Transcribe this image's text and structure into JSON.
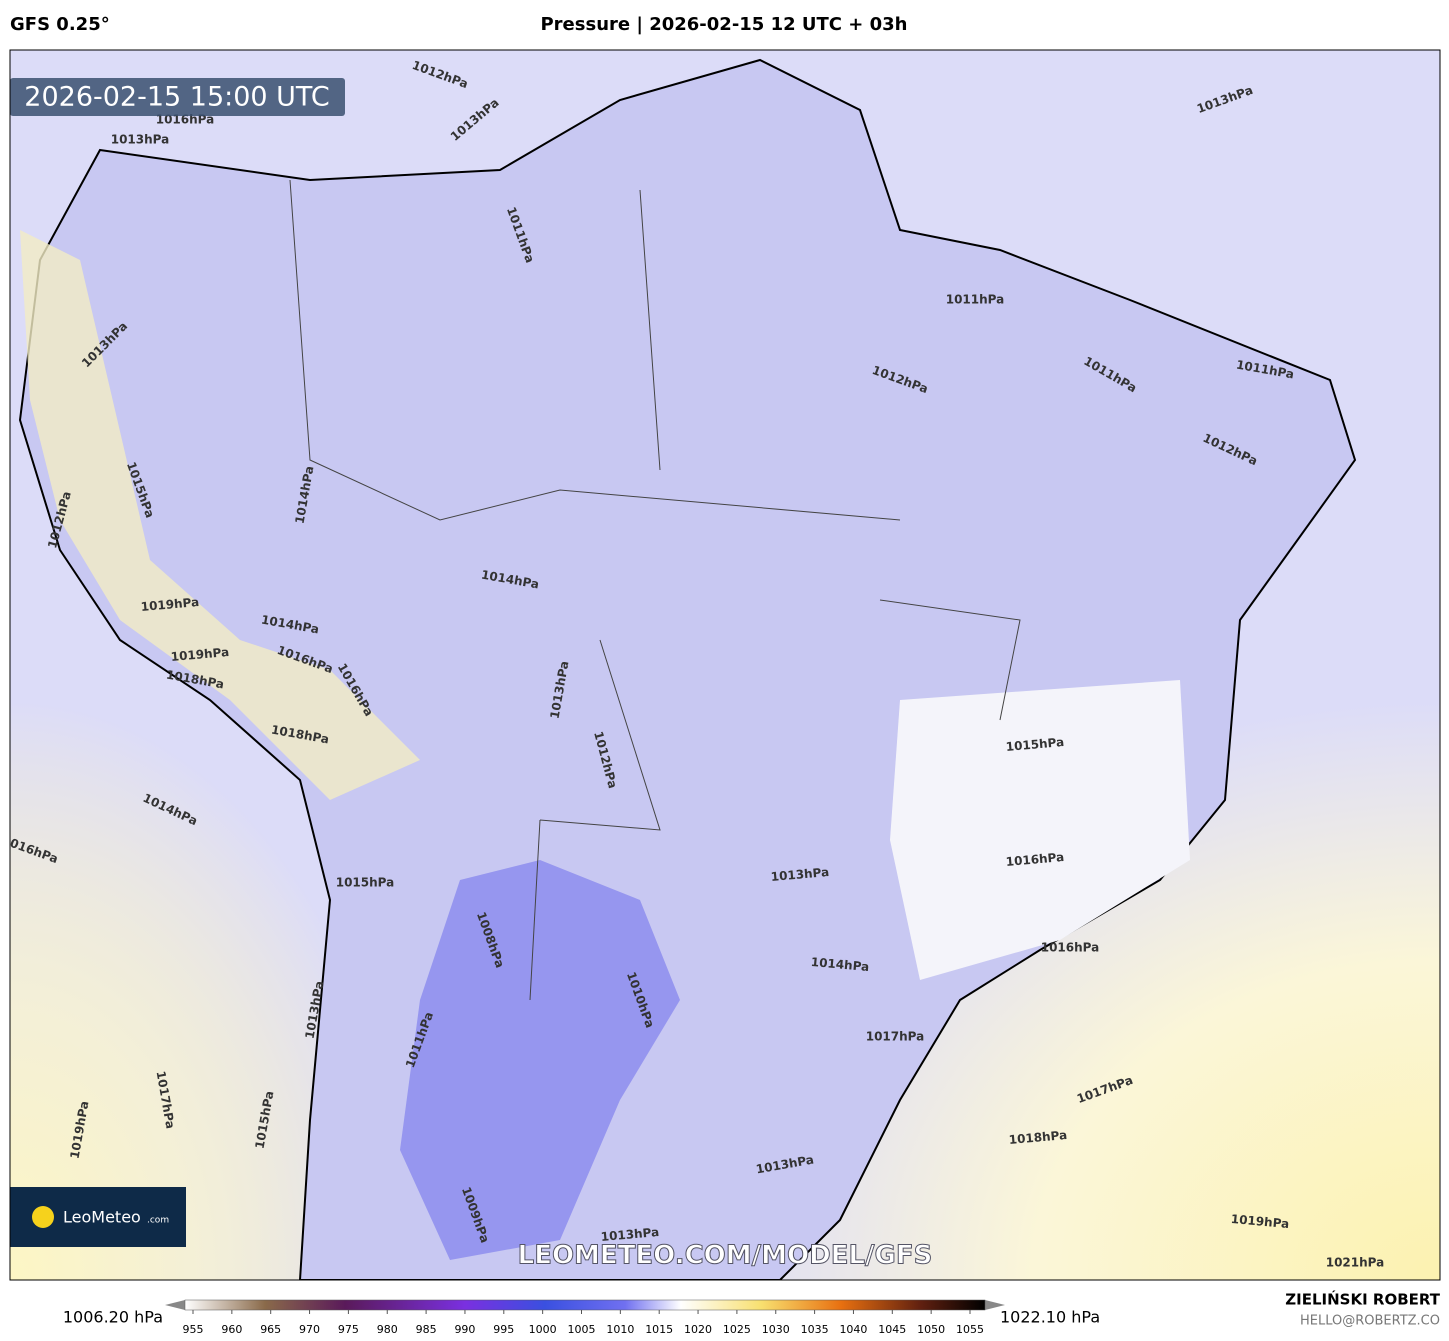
{
  "header": {
    "model": "GFS 0.25°",
    "title": "Pressure | 2026-02-15 12 UTC + 03h"
  },
  "map": {
    "valid_time": "2026-02-15 15:00 UTC",
    "watermark": "LEOMETEO.COM/MODEL/GFS",
    "logo": {
      "name": "LeoMeteo",
      "suffix": ".com"
    },
    "contour_labels": [
      "1012hPa",
      "1013hPa",
      "1013hPa",
      "1011hPa",
      "1011hPa",
      "1012hPa",
      "1011hPa",
      "1011hPa",
      "1012hPa",
      "1013hPa",
      "1014hPa",
      "1014hPa",
      "1013hPa",
      "1012hPa",
      "1015hPa",
      "1016hPa",
      "1014hPa",
      "1016hPa",
      "1015hPa",
      "1013hPa",
      "1014hPa",
      "1016hPa",
      "1008hPa",
      "1010hPa",
      "1017hPa",
      "1017hPa",
      "1018hPa",
      "1019hPa",
      "1021hPa",
      "1009hPa",
      "1013hPa",
      "1013hPa",
      "1017hPa",
      "1019hPa",
      "1015hPa",
      "1013hPa",
      "1011hPa",
      "1019hPa",
      "1019hPa",
      "1018hPa",
      "1016hPa",
      "1014hPa",
      "1016hPa",
      "1018hPa",
      "1015hPa",
      "1012hPa",
      "1016hPa",
      "1013hPa"
    ]
  },
  "colorbar": {
    "min_label": "1006.20 hPa",
    "max_label": "1022.10 hPa",
    "ticks": [
      955,
      960,
      965,
      970,
      975,
      980,
      985,
      990,
      995,
      1000,
      1005,
      1010,
      1015,
      1020,
      1025,
      1030,
      1035,
      1040,
      1045,
      1050,
      1055
    ]
  },
  "footer": {
    "author": "ZIELIŃSKI ROBERT",
    "contact": "HELLO@ROBERTZ.CO"
  }
}
